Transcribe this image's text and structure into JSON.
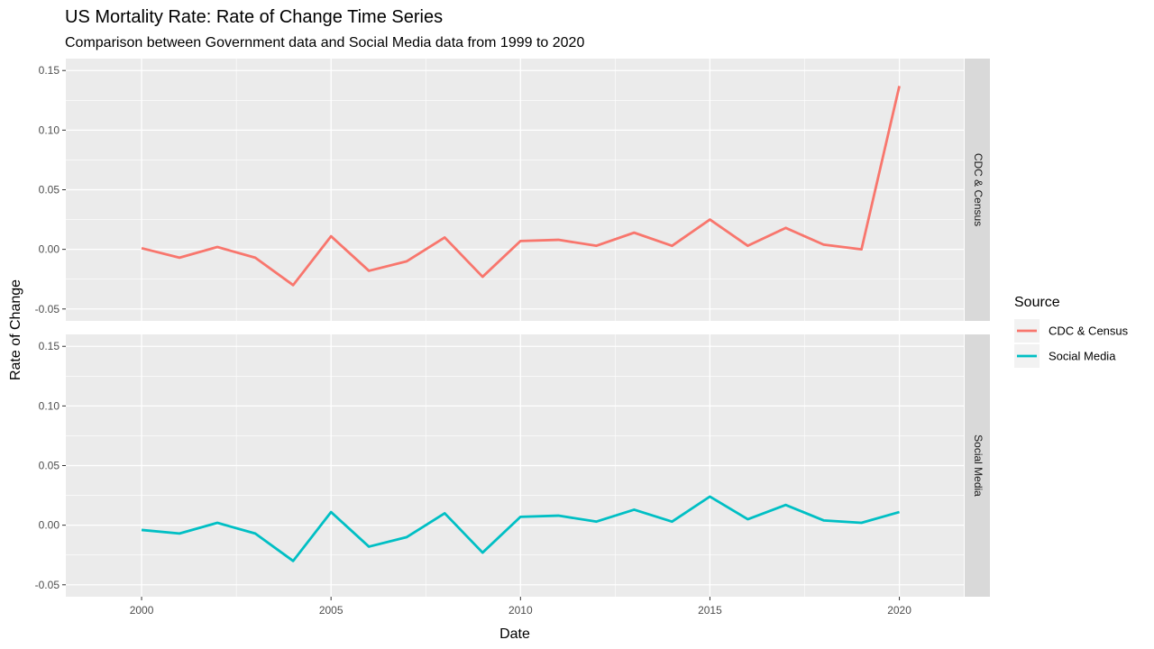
{
  "chart_data": {
    "type": "line",
    "title": "US Mortality Rate: Rate of Change Time Series",
    "subtitle": "Comparison between Government data and Social Media data from 1999 to 2020",
    "xlabel": "Date",
    "ylabel": "Rate of Change",
    "x_ticks": [
      "2000",
      "2005",
      "2010",
      "2015",
      "2020"
    ],
    "y_ticks": [
      "-0.05",
      "0.00",
      "0.05",
      "0.10",
      "0.15"
    ],
    "xlim": [
      1998,
      2021.7
    ],
    "ylim": [
      -0.06,
      0.16
    ],
    "grid": true,
    "legend": {
      "title": "Source",
      "placement": "right"
    },
    "x": [
      2000,
      2001,
      2002,
      2003,
      2004,
      2005,
      2006,
      2007,
      2008,
      2009,
      2010,
      2011,
      2012,
      2013,
      2014,
      2015,
      2016,
      2017,
      2018,
      2019,
      2020
    ],
    "series": [
      {
        "name": "CDC & Census",
        "color": "#F8766D",
        "values": [
          0.001,
          -0.007,
          0.002,
          -0.007,
          -0.03,
          0.011,
          -0.018,
          -0.01,
          0.01,
          -0.023,
          0.007,
          0.008,
          0.003,
          0.014,
          0.003,
          0.025,
          0.003,
          0.018,
          0.004,
          0.0,
          0.137
        ]
      },
      {
        "name": "Social Media",
        "color": "#00BFC4",
        "values": [
          -0.004,
          -0.007,
          0.002,
          -0.007,
          -0.03,
          0.011,
          -0.018,
          -0.01,
          0.01,
          -0.023,
          0.007,
          0.008,
          0.003,
          0.013,
          0.003,
          0.024,
          0.005,
          0.017,
          0.004,
          0.002,
          0.011
        ]
      }
    ],
    "facets": [
      "CDC & Census",
      "Social Media"
    ]
  }
}
